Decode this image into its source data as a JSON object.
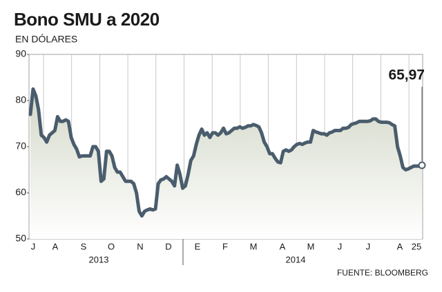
{
  "chart_data": {
    "type": "line",
    "title": "Bono SMU a 2020",
    "subtitle": "EN DÓLARES",
    "source": "FUENTE: BLOOMBERG",
    "months": [
      "J",
      "A",
      "S",
      "O",
      "N",
      "D",
      "E",
      "F",
      "M",
      "A",
      "M",
      "J",
      "J",
      "A",
      "25"
    ],
    "years": [
      "2013",
      "2014"
    ],
    "ylim": [
      50,
      90
    ],
    "yticks": [
      50,
      60,
      70,
      80,
      90
    ],
    "color": "#4a5d6d",
    "values": [
      77,
      82.5,
      81,
      78,
      72.5,
      72,
      71,
      72.5,
      73,
      73.5,
      76.5,
      75.5,
      75.5,
      75.8,
      75.5,
      72,
      70.5,
      69.5,
      67.8,
      68,
      68,
      68,
      68,
      70,
      70,
      69,
      62.5,
      63,
      69,
      69,
      68,
      65.5,
      64.5,
      64.5,
      63.5,
      62.5,
      62.5,
      62.5,
      62,
      60,
      56,
      55,
      56,
      56.3,
      56.5,
      56.3,
      56.5,
      62,
      62.8,
      63,
      63.5,
      63,
      62.5,
      61.5,
      66,
      64,
      61,
      61.5,
      64,
      67,
      68,
      70.5,
      72.5,
      73.8,
      72.5,
      73,
      72,
      73,
      73,
      72.5,
      73,
      74,
      72.8,
      73,
      73.5,
      74,
      74,
      74.3,
      74,
      74.2,
      74.5,
      74.5,
      74.8,
      74.6,
      74.3,
      73,
      71,
      70,
      68.5,
      68.5,
      67.5,
      66.7,
      66.5,
      69,
      69.3,
      69,
      69.3,
      70,
      70.5,
      70.7,
      70.5,
      70.8,
      71,
      71,
      73.5,
      73.2,
      73,
      72.8,
      72.8,
      72.5,
      73,
      73.2,
      73.5,
      73.5,
      73.5,
      74,
      74,
      74.2,
      74.8,
      75,
      75.2,
      75.5,
      75.5,
      75.5,
      75.5,
      75.6,
      76,
      76,
      75.5,
      75.3,
      75.3,
      75.3,
      75.2,
      74.8,
      74.5,
      70,
      68,
      65.5,
      65,
      65.2,
      65.5,
      65.8,
      65.8,
      65.8,
      65.97
    ],
    "value_labels": [
      null,
      null,
      null,
      null,
      null,
      null,
      null,
      null,
      null,
      null,
      null,
      null,
      null,
      null,
      null,
      null,
      null,
      null,
      null,
      null,
      null,
      null,
      null,
      null,
      null,
      null,
      null,
      null,
      null,
      null,
      null,
      null,
      null,
      null,
      null,
      null,
      null,
      null,
      null,
      null,
      null,
      null,
      null,
      null,
      null,
      null,
      null,
      null,
      null,
      null,
      null,
      null,
      null,
      null,
      null,
      null,
      null,
      null,
      null,
      null,
      null,
      null,
      null,
      null,
      null,
      null,
      null,
      null,
      null,
      null,
      null,
      null,
      null,
      null,
      null,
      null,
      null,
      null,
      null,
      null,
      null,
      null,
      null,
      null,
      null,
      null,
      null,
      null,
      null,
      null,
      null,
      null,
      null,
      null,
      null,
      null,
      null,
      null,
      null,
      null,
      null,
      null,
      null,
      null,
      null,
      null,
      null,
      null,
      null,
      null,
      null,
      null,
      null,
      null,
      null,
      null,
      null,
      null,
      null,
      null,
      null,
      null,
      null,
      null,
      null,
      null,
      null,
      null,
      null,
      null,
      null,
      null,
      null,
      null,
      null,
      null,
      null,
      null,
      null,
      null,
      null,
      null,
      null,
      null,
      "65,97"
    ]
  }
}
